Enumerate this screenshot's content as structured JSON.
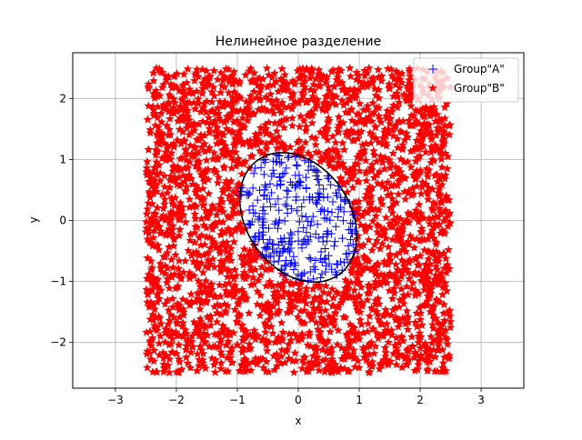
{
  "chart_data": {
    "type": "scatter",
    "title": "Нелинейное разделение",
    "xlabel": "x",
    "ylabel": "y",
    "xlim": [
      -3.7,
      3.7
    ],
    "ylim": [
      -2.75,
      2.75
    ],
    "xticks": [
      -3,
      -2,
      -1,
      0,
      1,
      2,
      3
    ],
    "yticks": [
      -2,
      -1,
      0,
      1,
      2
    ],
    "xtick_labels": [
      "−3",
      "−2",
      "−1",
      "0",
      "1",
      "2",
      "3"
    ],
    "ytick_labels": [
      "−2",
      "−1",
      "0",
      "1",
      "2"
    ],
    "grid": true,
    "legend_position": "top-right",
    "series": [
      {
        "name": "Group\"A\"",
        "marker": "plus",
        "color": "#0000ff",
        "region": "inside ellipse",
        "approx_count": 300
      },
      {
        "name": "Group\"B\"",
        "marker": "star",
        "color": "#ff0000",
        "region": "square [-2.5, 2.5] x [-2.5, 2.5] outside ellipse",
        "approx_count": 2700
      }
    ],
    "boundary": {
      "shape": "ellipse",
      "color": "#000000",
      "center": [
        0.0,
        0.05
      ],
      "semi_axes": [
        1.15,
        0.85
      ],
      "rotation_deg": -55
    }
  }
}
